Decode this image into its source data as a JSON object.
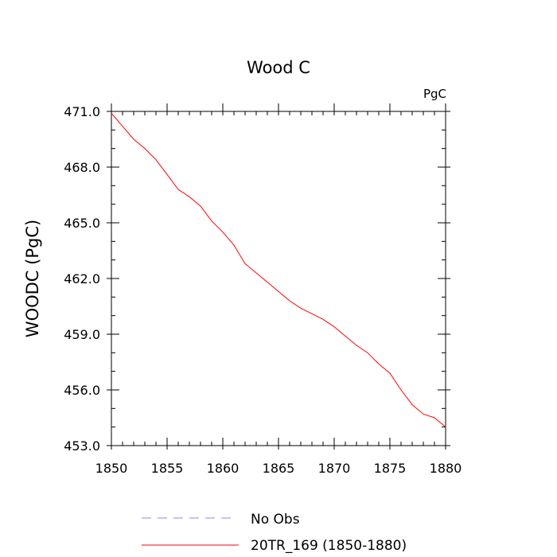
{
  "chart_data": {
    "type": "line",
    "title": "Wood C",
    "units_label": "PgC",
    "xlabel": "",
    "ylabel": "WOODC  (PgC)",
    "xlim": [
      1850,
      1880
    ],
    "ylim": [
      453.0,
      471.0
    ],
    "x_ticks": [
      1850,
      1855,
      1860,
      1865,
      1870,
      1875,
      1880
    ],
    "x_tick_labels": [
      "1850",
      "1855",
      "1860",
      "1865",
      "1870",
      "1875",
      "1880"
    ],
    "y_ticks": [
      453.0,
      456.0,
      459.0,
      462.0,
      465.0,
      468.0,
      471.0
    ],
    "y_tick_labels": [
      "453.0",
      "456.0",
      "459.0",
      "462.0",
      "465.0",
      "468.0",
      "471.0"
    ],
    "grid": false,
    "legend_position": "bottom",
    "series": [
      {
        "name": "No Obs",
        "color": "#8a8af0",
        "dash": "dashed",
        "x": [],
        "y": []
      },
      {
        "name": "20TR_169 (1850-1880)",
        "color": "#ff0000",
        "dash": "solid",
        "x": [
          1850,
          1851,
          1852,
          1853,
          1854,
          1855,
          1856,
          1857,
          1858,
          1859,
          1860,
          1861,
          1862,
          1863,
          1864,
          1865,
          1866,
          1867,
          1868,
          1869,
          1870,
          1871,
          1872,
          1873,
          1874,
          1875,
          1876,
          1877,
          1878,
          1879,
          1880
        ],
        "y": [
          470.9,
          470.2,
          469.5,
          469.0,
          468.4,
          467.6,
          466.8,
          466.4,
          465.9,
          465.1,
          464.5,
          463.8,
          462.8,
          462.3,
          461.8,
          461.3,
          460.8,
          460.4,
          460.1,
          459.8,
          459.4,
          458.9,
          458.4,
          458.0,
          457.4,
          456.9,
          456.0,
          455.2,
          454.7,
          454.5,
          454.0
        ]
      }
    ]
  }
}
